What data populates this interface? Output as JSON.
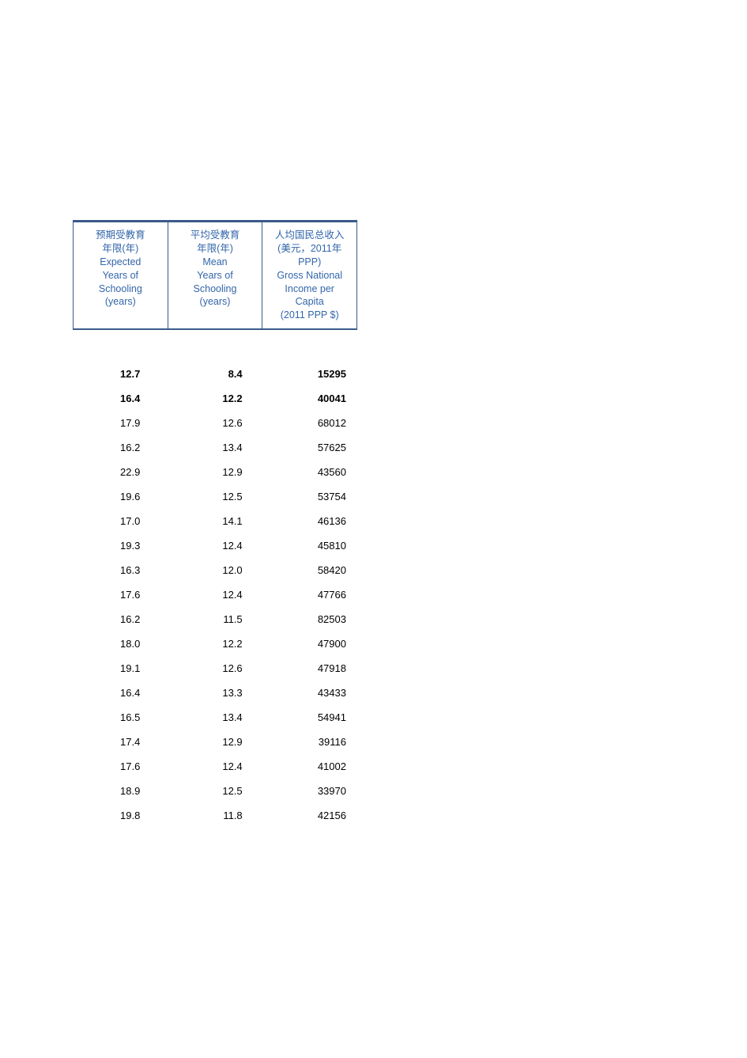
{
  "table": {
    "header_text_color": "#3366aa",
    "border_color": "#3a5a8a",
    "background_color": "#ffffff",
    "data_text_color": "#000000",
    "font_size_header": 12.5,
    "font_size_data": 13,
    "columns": [
      {
        "lines": [
          "预期受教育",
          "年限(年)",
          "Expected",
          "Years of",
          "Schooling",
          "(years)"
        ]
      },
      {
        "lines": [
          "平均受教育",
          "年限(年)",
          "Mean",
          "Years of",
          "Schooling",
          "(years)"
        ]
      },
      {
        "lines": [
          "人均国民总收入",
          "(美元，2011年",
          "PPP)",
          "Gross National",
          "Income per",
          "Capita",
          "(2011 PPP $)"
        ]
      }
    ],
    "rows": [
      {
        "bold": true,
        "v": [
          "12.7",
          "8.4",
          "15295"
        ]
      },
      {
        "bold": true,
        "v": [
          "16.4",
          "12.2",
          "40041"
        ]
      },
      {
        "bold": false,
        "v": [
          "17.9",
          "12.6",
          "68012"
        ]
      },
      {
        "bold": false,
        "v": [
          "16.2",
          "13.4",
          "57625"
        ]
      },
      {
        "bold": false,
        "v": [
          "22.9",
          "12.9",
          "43560"
        ]
      },
      {
        "bold": false,
        "v": [
          "19.6",
          "12.5",
          "53754"
        ]
      },
      {
        "bold": false,
        "v": [
          "17.0",
          "14.1",
          "46136"
        ]
      },
      {
        "bold": false,
        "v": [
          "19.3",
          "12.4",
          "45810"
        ]
      },
      {
        "bold": false,
        "v": [
          "16.3",
          "12.0",
          "58420"
        ]
      },
      {
        "bold": false,
        "v": [
          "17.6",
          "12.4",
          "47766"
        ]
      },
      {
        "bold": false,
        "v": [
          "16.2",
          "11.5",
          "82503"
        ]
      },
      {
        "bold": false,
        "v": [
          "18.0",
          "12.2",
          "47900"
        ]
      },
      {
        "bold": false,
        "v": [
          "19.1",
          "12.6",
          "47918"
        ]
      },
      {
        "bold": false,
        "v": [
          "16.4",
          "13.3",
          "43433"
        ]
      },
      {
        "bold": false,
        "v": [
          "16.5",
          "13.4",
          "54941"
        ]
      },
      {
        "bold": false,
        "v": [
          "17.4",
          "12.9",
          "39116"
        ]
      },
      {
        "bold": false,
        "v": [
          "17.6",
          "12.4",
          "41002"
        ]
      },
      {
        "bold": false,
        "v": [
          "18.9",
          "12.5",
          "33970"
        ]
      },
      {
        "bold": false,
        "v": [
          "19.8",
          "11.8",
          "42156"
        ]
      }
    ]
  }
}
